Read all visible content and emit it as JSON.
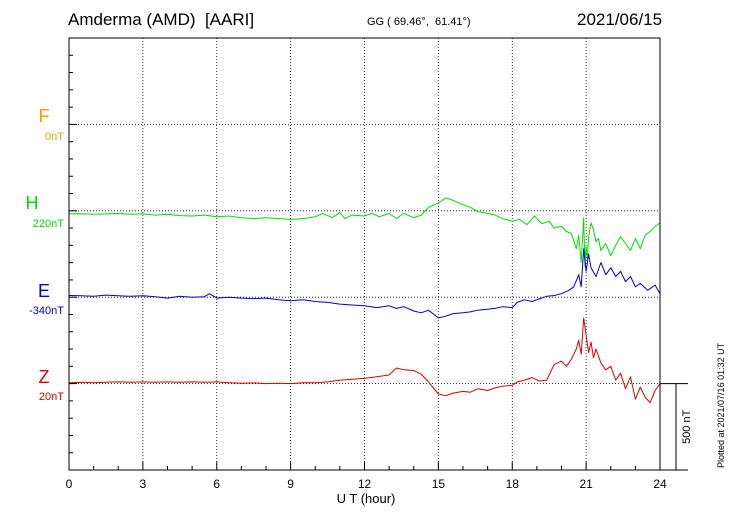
{
  "header": {
    "station": "Amderma (AMD)  [AARI]",
    "coords": "GG ( 69.46°,  61.41°)",
    "date": "2021/06/15"
  },
  "plotted_note": "Plotted at 2021/07/16 01:32 UT",
  "chart_data": {
    "type": "line",
    "xlabel": "U T (hour)",
    "xlim": [
      0,
      24
    ],
    "xticks": [
      0,
      3,
      6,
      9,
      12,
      15,
      18,
      21,
      24
    ],
    "scale_bar": "500 nT",
    "scale_nT": 500,
    "axis_range_nT": 2500,
    "grid": true,
    "components": [
      {
        "name": "F",
        "offset": "0nT",
        "color": "#f0a000",
        "baseline_nT": 2000,
        "points": []
      },
      {
        "name": "H",
        "offset": "220nT",
        "color": "#00e000",
        "baseline_nT": 1500,
        "points": [
          [
            0,
            -18
          ],
          [
            0.5,
            -17
          ],
          [
            1,
            -20
          ],
          [
            1.5,
            -18
          ],
          [
            2,
            -15
          ],
          [
            2.5,
            -20
          ],
          [
            3,
            -18
          ],
          [
            3.5,
            -25
          ],
          [
            4,
            -20
          ],
          [
            4.5,
            -28
          ],
          [
            5,
            -30
          ],
          [
            5.5,
            -25
          ],
          [
            6,
            -35
          ],
          [
            6.5,
            -30
          ],
          [
            7,
            -40
          ],
          [
            7.5,
            -45
          ],
          [
            8,
            -40
          ],
          [
            8.5,
            -45
          ],
          [
            9,
            -50
          ],
          [
            9.5,
            -45
          ],
          [
            10,
            -35
          ],
          [
            10.3,
            -15
          ],
          [
            10.7,
            -40
          ],
          [
            11,
            -10
          ],
          [
            11.2,
            -45
          ],
          [
            11.5,
            -25
          ],
          [
            12,
            -30
          ],
          [
            12.3,
            -15
          ],
          [
            12.6,
            -35
          ],
          [
            13,
            -15
          ],
          [
            13.3,
            -45
          ],
          [
            13.6,
            -15
          ],
          [
            14,
            -40
          ],
          [
            14.3,
            -25
          ],
          [
            14.6,
            20
          ],
          [
            15,
            45
          ],
          [
            15.3,
            75
          ],
          [
            15.6,
            60
          ],
          [
            16,
            35
          ],
          [
            16.3,
            20
          ],
          [
            16.6,
            -5
          ],
          [
            17,
            -15
          ],
          [
            17.3,
            -25
          ],
          [
            17.6,
            -45
          ],
          [
            18,
            -60
          ],
          [
            18.3,
            -50
          ],
          [
            18.6,
            -80
          ],
          [
            18.9,
            -30
          ],
          [
            19.2,
            -75
          ],
          [
            19.5,
            -60
          ],
          [
            19.7,
            -100
          ],
          [
            20,
            -90
          ],
          [
            20.2,
            -120
          ],
          [
            20.4,
            -130
          ],
          [
            20.6,
            -220
          ],
          [
            20.7,
            -140
          ],
          [
            20.8,
            -300
          ],
          [
            20.85,
            -180
          ],
          [
            20.9,
            -40
          ],
          [
            20.95,
            -320
          ],
          [
            21,
            -200
          ],
          [
            21.05,
            -280
          ],
          [
            21.1,
            -150
          ],
          [
            21.2,
            -70
          ],
          [
            21.3,
            -110
          ],
          [
            21.4,
            -180
          ],
          [
            21.5,
            -160
          ],
          [
            21.6,
            -230
          ],
          [
            21.8,
            -190
          ],
          [
            22,
            -260
          ],
          [
            22.2,
            -200
          ],
          [
            22.4,
            -150
          ],
          [
            22.6,
            -190
          ],
          [
            22.8,
            -230
          ],
          [
            23,
            -160
          ],
          [
            23.2,
            -220
          ],
          [
            23.4,
            -140
          ],
          [
            23.6,
            -120
          ],
          [
            23.8,
            -90
          ],
          [
            24,
            -70
          ]
        ]
      },
      {
        "name": "E",
        "offset": "-340nT",
        "color": "#0000d0",
        "baseline_nT": 1000,
        "points": [
          [
            0,
            10
          ],
          [
            0.5,
            8
          ],
          [
            1,
            5
          ],
          [
            1.5,
            12
          ],
          [
            2,
            8
          ],
          [
            2.5,
            5
          ],
          [
            3,
            8
          ],
          [
            3.5,
            3
          ],
          [
            4,
            -5
          ],
          [
            4.5,
            5
          ],
          [
            5,
            0
          ],
          [
            5.5,
            3
          ],
          [
            5.7,
            20
          ],
          [
            6,
            -5
          ],
          [
            6.5,
            0
          ],
          [
            7,
            -5
          ],
          [
            7.5,
            -8
          ],
          [
            8,
            -5
          ],
          [
            8.5,
            -15
          ],
          [
            9,
            -20
          ],
          [
            9.5,
            -15
          ],
          [
            10,
            -25
          ],
          [
            10.5,
            -30
          ],
          [
            11,
            -40
          ],
          [
            11.5,
            -45
          ],
          [
            12,
            -50
          ],
          [
            12.5,
            -60
          ],
          [
            13,
            -50
          ],
          [
            13.3,
            -65
          ],
          [
            13.6,
            -55
          ],
          [
            14,
            -80
          ],
          [
            14.3,
            -90
          ],
          [
            14.6,
            -75
          ],
          [
            15,
            -120
          ],
          [
            15.3,
            -110
          ],
          [
            15.6,
            -95
          ],
          [
            16,
            -90
          ],
          [
            16.3,
            -85
          ],
          [
            16.6,
            -75
          ],
          [
            17,
            -70
          ],
          [
            17.3,
            -65
          ],
          [
            17.6,
            -55
          ],
          [
            18,
            -60
          ],
          [
            18.2,
            -30
          ],
          [
            18.5,
            -15
          ],
          [
            18.8,
            -25
          ],
          [
            19.1,
            -10
          ],
          [
            19.4,
            5
          ],
          [
            19.7,
            10
          ],
          [
            20,
            20
          ],
          [
            20.3,
            40
          ],
          [
            20.5,
            60
          ],
          [
            20.7,
            130
          ],
          [
            20.8,
            60
          ],
          [
            20.9,
            280
          ],
          [
            21,
            150
          ],
          [
            21.1,
            250
          ],
          [
            21.2,
            170
          ],
          [
            21.4,
            120
          ],
          [
            21.6,
            200
          ],
          [
            21.8,
            130
          ],
          [
            22,
            170
          ],
          [
            22.2,
            120
          ],
          [
            22.4,
            150
          ],
          [
            22.6,
            90
          ],
          [
            22.8,
            120
          ],
          [
            23,
            60
          ],
          [
            23.2,
            80
          ],
          [
            23.5,
            40
          ],
          [
            23.8,
            70
          ],
          [
            24,
            20
          ]
        ]
      },
      {
        "name": "Z",
        "offset": "20nT",
        "color": "#e00000",
        "baseline_nT": 500,
        "points": [
          [
            0,
            5
          ],
          [
            0.5,
            8
          ],
          [
            1,
            5
          ],
          [
            1.5,
            8
          ],
          [
            2,
            10
          ],
          [
            2.5,
            8
          ],
          [
            3,
            10
          ],
          [
            3.5,
            8
          ],
          [
            4,
            10
          ],
          [
            4.5,
            8
          ],
          [
            5,
            10
          ],
          [
            5.5,
            8
          ],
          [
            6,
            10
          ],
          [
            6.5,
            5
          ],
          [
            7,
            2
          ],
          [
            7.5,
            4
          ],
          [
            8,
            0
          ],
          [
            8.5,
            2
          ],
          [
            9,
            0
          ],
          [
            9.5,
            5
          ],
          [
            10,
            5
          ],
          [
            10.5,
            10
          ],
          [
            11,
            20
          ],
          [
            11.5,
            25
          ],
          [
            12,
            30
          ],
          [
            12.5,
            40
          ],
          [
            13,
            50
          ],
          [
            13.3,
            90
          ],
          [
            13.6,
            80
          ],
          [
            14,
            75
          ],
          [
            14.3,
            55
          ],
          [
            14.6,
            10
          ],
          [
            15,
            -60
          ],
          [
            15.3,
            -70
          ],
          [
            15.6,
            -55
          ],
          [
            16,
            -45
          ],
          [
            16.3,
            -50
          ],
          [
            16.6,
            -30
          ],
          [
            17,
            -40
          ],
          [
            17.3,
            -25
          ],
          [
            17.6,
            -15
          ],
          [
            18,
            -10
          ],
          [
            18.2,
            10
          ],
          [
            18.5,
            20
          ],
          [
            18.8,
            35
          ],
          [
            19.1,
            15
          ],
          [
            19.4,
            20
          ],
          [
            19.7,
            110
          ],
          [
            20,
            130
          ],
          [
            20.2,
            100
          ],
          [
            20.4,
            140
          ],
          [
            20.6,
            200
          ],
          [
            20.7,
            250
          ],
          [
            20.8,
            170
          ],
          [
            20.9,
            380
          ],
          [
            21,
            280
          ],
          [
            21.1,
            180
          ],
          [
            21.2,
            240
          ],
          [
            21.3,
            150
          ],
          [
            21.4,
            200
          ],
          [
            21.6,
            120
          ],
          [
            21.8,
            80
          ],
          [
            22,
            100
          ],
          [
            22.2,
            20
          ],
          [
            22.4,
            60
          ],
          [
            22.6,
            -30
          ],
          [
            22.8,
            40
          ],
          [
            23,
            -90
          ],
          [
            23.2,
            -20
          ],
          [
            23.4,
            -80
          ],
          [
            23.6,
            -110
          ],
          [
            23.8,
            -40
          ],
          [
            24,
            0
          ]
        ]
      }
    ]
  }
}
